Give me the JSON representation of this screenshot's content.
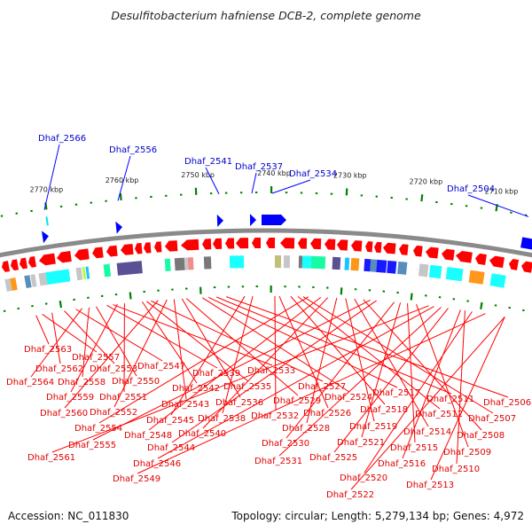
{
  "header": {
    "title": "Desulfitobacterium hafniense DCB-2, complete genome"
  },
  "footer": {
    "accession": "Accession: NC_011830",
    "stats": "Topology: circular; Length: 5,279,134 bp; Genes: 4,972"
  },
  "genome": {
    "organism": "Desulfitobacterium hafniense DCB-2",
    "accession": "NC_011830",
    "topology": "circular",
    "length_bp": 5279134,
    "genes_total": 4972
  },
  "scale": {
    "unit": "kbp",
    "ticks": [
      {
        "kbp": 2770,
        "label": "2770 kbp"
      },
      {
        "kbp": 2760,
        "label": "2760 kbp"
      },
      {
        "kbp": 2750,
        "label": "2750 kbp"
      },
      {
        "kbp": 2740,
        "label": "2740 kbp"
      },
      {
        "kbp": 2730,
        "label": "2730 kbp"
      },
      {
        "kbp": 2720,
        "label": "2720 kbp"
      },
      {
        "kbp": 2710,
        "label": "2710 kbp"
      }
    ]
  },
  "colors": {
    "forward_strand": "#0000ff",
    "reverse_strand": "#ff0000",
    "backbone": "#8a8a8a",
    "ticks": "#008000"
  },
  "forward_genes": [
    {
      "id": "Dhaf_2566",
      "label": "Dhaf_2566"
    },
    {
      "id": "Dhaf_2556",
      "label": "Dhaf_2556"
    },
    {
      "id": "Dhaf_2541",
      "label": "Dhaf_2541"
    },
    {
      "id": "Dhaf_2537",
      "label": "Dhaf_2537"
    },
    {
      "id": "Dhaf_2534",
      "label": "Dhaf_2534"
    },
    {
      "id": "Dhaf_2504",
      "label": "Dhaf_2504"
    }
  ],
  "reverse_genes": [
    {
      "label": "Dhaf_2563"
    },
    {
      "label": "Dhaf_2557"
    },
    {
      "label": "Dhaf_2562"
    },
    {
      "label": "Dhaf_2553"
    },
    {
      "label": "Dhaf_2547"
    },
    {
      "label": "Dhaf_2564"
    },
    {
      "label": "Dhaf_2558"
    },
    {
      "label": "Dhaf_2550"
    },
    {
      "label": "Dhaf_2539"
    },
    {
      "label": "Dhaf_2533"
    },
    {
      "label": "Dhaf_2559"
    },
    {
      "label": "Dhaf_2551"
    },
    {
      "label": "Dhaf_2542"
    },
    {
      "label": "Dhaf_2535"
    },
    {
      "label": "Dhaf_2527"
    },
    {
      "label": "Dhaf_2560"
    },
    {
      "label": "Dhaf_2552"
    },
    {
      "label": "Dhaf_2543"
    },
    {
      "label": "Dhaf_2536"
    },
    {
      "label": "Dhaf_2529"
    },
    {
      "label": "Dhaf_2524"
    },
    {
      "label": "Dhaf_2517"
    },
    {
      "label": "Dhaf_2511"
    },
    {
      "label": "Dhaf_2506"
    },
    {
      "label": "Dhaf_2545"
    },
    {
      "label": "Dhaf_2538"
    },
    {
      "label": "Dhaf_2532"
    },
    {
      "label": "Dhaf_2526"
    },
    {
      "label": "Dhaf_2518"
    },
    {
      "label": "Dhaf_2512"
    },
    {
      "label": "Dhaf_2507"
    },
    {
      "label": "Dhaf_2554"
    },
    {
      "label": "Dhaf_2548"
    },
    {
      "label": "Dhaf_2540"
    },
    {
      "label": "Dhaf_2528"
    },
    {
      "label": "Dhaf_2519"
    },
    {
      "label": "Dhaf_2514"
    },
    {
      "label": "Dhaf_2508"
    },
    {
      "label": "Dhaf_2555"
    },
    {
      "label": "Dhaf_2544"
    },
    {
      "label": "Dhaf_2530"
    },
    {
      "label": "Dhaf_2521"
    },
    {
      "label": "Dhaf_2515"
    },
    {
      "label": "Dhaf_2509"
    },
    {
      "label": "Dhaf_2561"
    },
    {
      "label": "Dhaf_2546"
    },
    {
      "label": "Dhaf_2531"
    },
    {
      "label": "Dhaf_2525"
    },
    {
      "label": "Dhaf_2516"
    },
    {
      "label": "Dhaf_2510"
    },
    {
      "label": "Dhaf_2520"
    },
    {
      "label": "Dhaf_2549"
    },
    {
      "label": "Dhaf_2513"
    },
    {
      "label": "Dhaf_2522"
    }
  ],
  "cog_colors": [
    "#c0c0c0",
    "#ff8c00",
    "#4682b4",
    "#00ffff",
    "#00fa9a",
    "#483d8b",
    "#696969",
    "#f08080",
    "#bdb76b",
    "#0000ff",
    "#32cd32",
    "#00bfff",
    "#adff2f"
  ]
}
